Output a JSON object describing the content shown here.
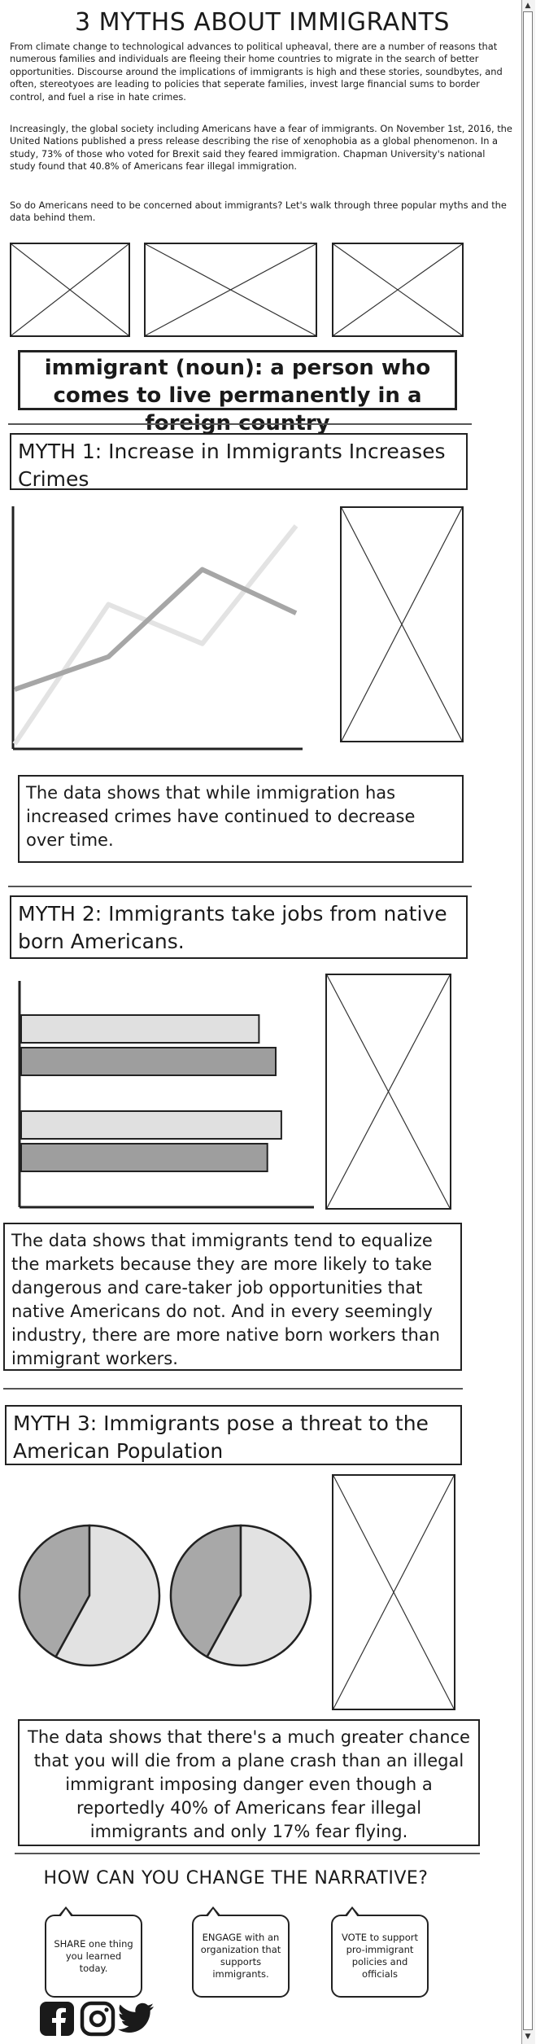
{
  "page": {
    "title": "3 MYTHS ABOUT IMMIGRANTS",
    "intro": [
      "From climate change to technological advances to political upheaval, there are a number of reasons that numerous families and individuals are fleeing their home countries to migrate in the search of better opportunities. Discourse around the implications of immigrants is high and these stories, soundbytes, and often, stereotyoes are leading to policies that seperate families, invest large financial sums to border control, and fuel a rise in hate crimes.",
      "Increasingly, the global society including Americans have a fear of immigrants. On November 1st, 2016, the United Nations published a press release describing the rise of xenophobia as a global phenomenon. In a study, 73% of those who voted for Brexit said they feared immigration. Chapman University's national study found that 40.8% of Americans fear illegal immigration.",
      "So do Americans need to be concerned about immigrants? Let's walk through three popular myths and the data behind them."
    ],
    "definition": "immigrant (noun): a person who comes to live permanently in a foreign country"
  },
  "myths": [
    {
      "title": "MYTH 1:  Increase in Immigrants Increases Crimes",
      "finding": "The data shows that while immigration has increased crimes have continued to decrease over time."
    },
    {
      "title": "MYTH 2: Immigrants take jobs from native born Americans.",
      "finding": "The data shows that immigrants tend to equalize the markets because they are more likely to take dangerous and care-taker job opportunities that native Americans do not. And in every seemingly industry, there are more native born workers than immigrant workers."
    },
    {
      "title": "MYTH 3: Immigrants pose a threat to the American Population",
      "finding": "The data shows that there's a much greater chance that you will die from a plane crash than an illegal immigrant imposing danger even though a reportedly 40% of Americans fear illegal immigrants and only 17% fear flying."
    }
  ],
  "cta": {
    "title": "HOW CAN YOU CHANGE THE NARRATIVE?",
    "bubbles": [
      "SHARE one thing you learned today.",
      "ENGAGE with an organization that supports immigrants.",
      "VOTE to support pro-immigrant policies and officials"
    ],
    "social_icons": [
      "facebook-icon",
      "instagram-icon",
      "twitter-icon"
    ]
  },
  "chart_data": [
    {
      "type": "line",
      "x": [
        0,
        1,
        2,
        3
      ],
      "series": [
        {
          "values": [
            0.25,
            0.4,
            0.8,
            0.6
          ],
          "color": "#a6a6a6"
        },
        {
          "values": [
            0,
            0.64,
            0.46,
            1.0
          ],
          "color": "#e3e3e3"
        }
      ],
      "ylim": [
        0,
        1
      ]
    },
    {
      "type": "bar",
      "orientation": "horizontal",
      "series": [
        {
          "values": [
            0.85,
            0.93
          ],
          "color": "#e0e0e0"
        },
        {
          "values": [
            0.91,
            0.88
          ],
          "color": "#9e9e9e"
        }
      ],
      "xlim": [
        0,
        1
      ]
    },
    {
      "type": "pie",
      "charts": [
        {
          "slices": [
            42,
            58
          ],
          "colors": [
            "#a8a8a8",
            "#e2e2e2"
          ]
        },
        {
          "slices": [
            42,
            58
          ],
          "colors": [
            "#a8a8a8",
            "#e2e2e2"
          ]
        }
      ]
    }
  ]
}
